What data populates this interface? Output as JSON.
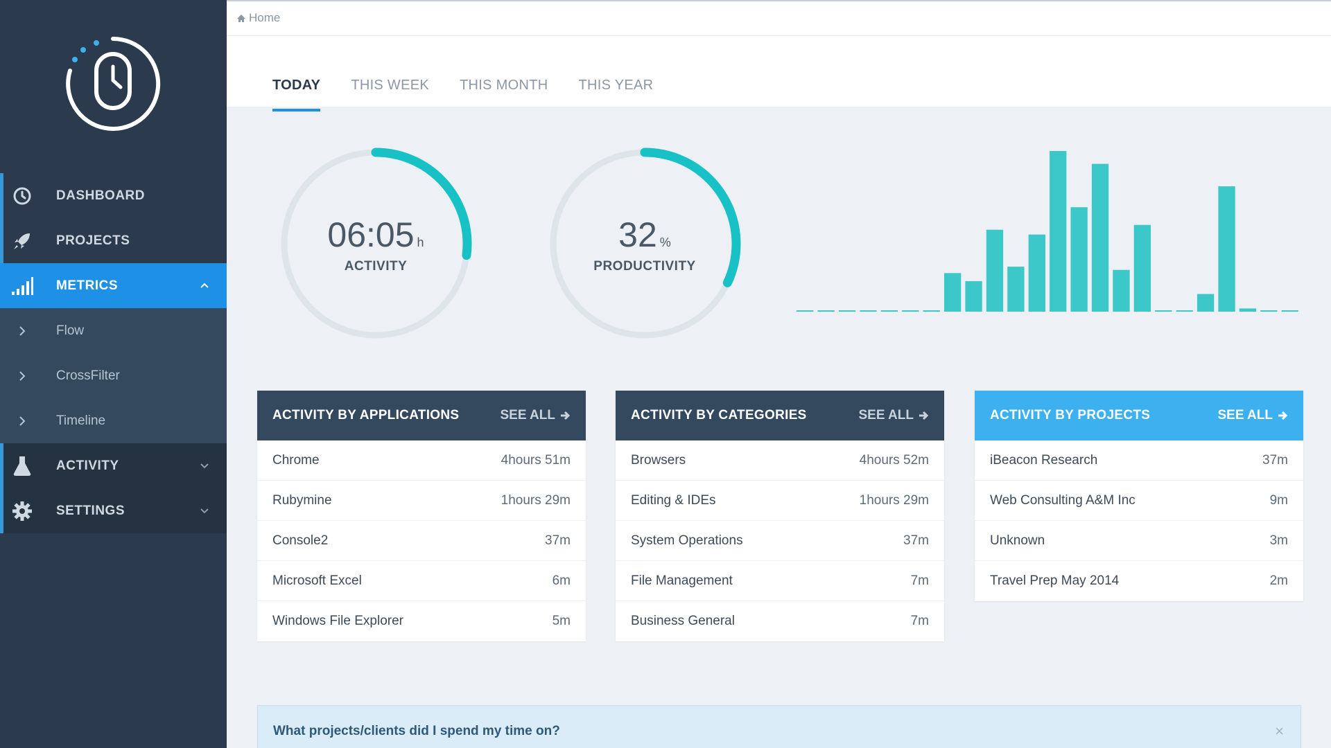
{
  "breadcrumb": {
    "icon": "home-icon",
    "label": "Home"
  },
  "tabs": [
    {
      "label": "TODAY",
      "active": true
    },
    {
      "label": "THIS WEEK",
      "active": false
    },
    {
      "label": "THIS MONTH",
      "active": false
    },
    {
      "label": "THIS YEAR",
      "active": false
    }
  ],
  "sidebar": {
    "logo": "mouse-clock-logo",
    "items": [
      {
        "label": "DASHBOARD",
        "icon": "clock-icon"
      },
      {
        "label": "PROJECTS",
        "icon": "rocket-icon"
      },
      {
        "label": "METRICS",
        "icon": "signal-bars-icon",
        "expanded": true
      },
      {
        "label": "ACTIVITY",
        "icon": "flask-icon"
      },
      {
        "label": "SETTINGS",
        "icon": "gear-icon"
      }
    ],
    "metrics_sub": [
      {
        "label": "Flow"
      },
      {
        "label": "CrossFilter"
      },
      {
        "label": "Timeline"
      }
    ]
  },
  "gauges": {
    "activity": {
      "value": "06:05",
      "unit": "h",
      "caption": "ACTIVITY",
      "fraction": 0.27
    },
    "productivity": {
      "value": "32",
      "unit": "%",
      "caption": "PRODUCTIVITY",
      "fraction": 0.32
    }
  },
  "chart_data": {
    "type": "bar",
    "values": [
      0,
      0,
      0,
      0,
      0,
      0,
      0,
      24,
      19,
      51,
      28,
      48,
      100,
      65,
      92,
      26,
      54,
      0,
      0,
      11,
      78,
      2,
      0,
      0
    ],
    "ylim": [
      0,
      100
    ],
    "color": "#3cc8c8"
  },
  "cards": [
    {
      "title": "ACTIVITY BY APPLICATIONS",
      "see_all": "SEE ALL",
      "rows": [
        {
          "name": "Chrome",
          "time": "4hours 51m"
        },
        {
          "name": "Rubymine",
          "time": "1hours 29m"
        },
        {
          "name": "Console2",
          "time": "37m"
        },
        {
          "name": "Microsoft Excel",
          "time": "6m"
        },
        {
          "name": "Windows File Explorer",
          "time": "5m"
        }
      ]
    },
    {
      "title": "ACTIVITY BY CATEGORIES",
      "see_all": "SEE ALL",
      "rows": [
        {
          "name": "Browsers",
          "time": "4hours 52m"
        },
        {
          "name": "Editing & IDEs",
          "time": "1hours 29m"
        },
        {
          "name": "System Operations",
          "time": "37m"
        },
        {
          "name": "File Management",
          "time": "7m"
        },
        {
          "name": "Business General",
          "time": "7m"
        }
      ]
    },
    {
      "title": "ACTIVITY BY PROJECTS",
      "see_all": "SEE ALL",
      "rows": [
        {
          "name": "iBeacon Research",
          "time": "37m"
        },
        {
          "name": "Web Consulting A&M Inc",
          "time": "9m"
        },
        {
          "name": "Unknown",
          "time": "3m"
        },
        {
          "name": "Travel Prep May 2014",
          "time": "2m"
        }
      ]
    }
  ],
  "question": {
    "text": "What projects/clients did I spend my time on?",
    "close": "×"
  },
  "colors": {
    "sidebar": "#2b3a4c",
    "accent": "#1e90e6",
    "teal": "#17c1c6",
    "projects_header": "#3db1f0"
  }
}
